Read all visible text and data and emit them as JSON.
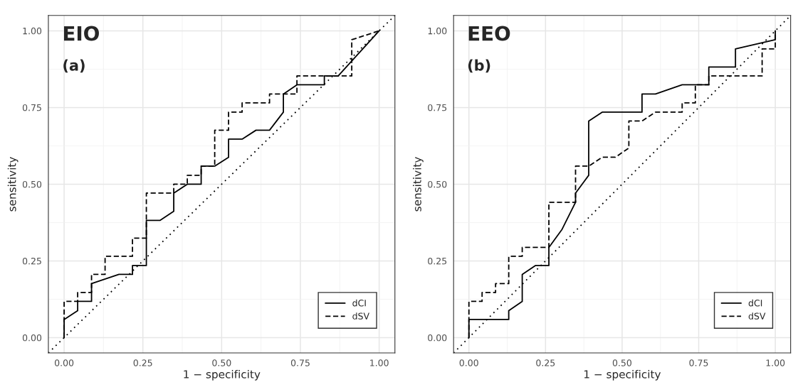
{
  "chart_data": [
    {
      "type": "line",
      "title": "EIO",
      "subtitle": "(a)",
      "xlabel": "1 − specificity",
      "ylabel": "sensitivity",
      "xlim": [
        -0.05,
        1.05
      ],
      "ylim": [
        -0.05,
        1.05
      ],
      "xticks": [
        {
          "value": 0,
          "label": "0.00"
        },
        {
          "value": 0.25,
          "label": "0.25"
        },
        {
          "value": 0.5,
          "label": "0.50"
        },
        {
          "value": 0.75,
          "label": "0.75"
        },
        {
          "value": 1,
          "label": "1.00"
        }
      ],
      "yticks": [
        {
          "value": 0,
          "label": "0.00"
        },
        {
          "value": 0.25,
          "label": "0.25"
        },
        {
          "value": 0.5,
          "label": "0.50"
        },
        {
          "value": 0.75,
          "label": "0.75"
        },
        {
          "value": 1,
          "label": "1.00"
        }
      ],
      "grid": true,
      "legend": "bottom right",
      "series": [
        {
          "name": "dCI",
          "color": "#000000",
          "line_style": "solid",
          "x": [
            0,
            0,
            0.043,
            0.043,
            0.087,
            0.087,
            0.174,
            0.217,
            0.217,
            0.261,
            0.261,
            0.304,
            0.348,
            0.348,
            0.391,
            0.435,
            0.435,
            0.478,
            0.522,
            0.522,
            0.565,
            0.609,
            0.652,
            0.696,
            0.696,
            0.739,
            0.826,
            0.826,
            0.87,
            1.0
          ],
          "values": [
            0,
            0.059,
            0.088,
            0.118,
            0.118,
            0.176,
            0.206,
            0.206,
            0.235,
            0.235,
            0.382,
            0.382,
            0.412,
            0.471,
            0.5,
            0.5,
            0.559,
            0.559,
            0.588,
            0.647,
            0.647,
            0.676,
            0.676,
            0.735,
            0.794,
            0.824,
            0.824,
            0.853,
            0.853,
            1.0
          ]
        },
        {
          "name": "dSV",
          "color": "#000000",
          "line_style": "dashed",
          "x": [
            0,
            0,
            0.043,
            0.043,
            0.087,
            0.087,
            0.13,
            0.13,
            0.217,
            0.217,
            0.261,
            0.261,
            0.348,
            0.348,
            0.391,
            0.391,
            0.435,
            0.435,
            0.478,
            0.478,
            0.522,
            0.522,
            0.565,
            0.565,
            0.652,
            0.652,
            0.739,
            0.739,
            0.913,
            0.913,
            1.0
          ],
          "values": [
            0,
            0.118,
            0.118,
            0.147,
            0.147,
            0.206,
            0.206,
            0.265,
            0.265,
            0.324,
            0.324,
            0.471,
            0.471,
            0.5,
            0.5,
            0.529,
            0.529,
            0.559,
            0.559,
            0.676,
            0.676,
            0.735,
            0.735,
            0.765,
            0.765,
            0.794,
            0.794,
            0.853,
            0.853,
            0.971,
            1.0
          ]
        },
        {
          "color": "#000000",
          "line_style": "dotted",
          "x": [
            -0.05,
            1.05
          ],
          "values": [
            -0.05,
            1.05
          ]
        }
      ]
    },
    {
      "type": "line",
      "title": "EEO",
      "subtitle": "(b)",
      "xlabel": "1 − specificity",
      "ylabel": "sensitivity",
      "xlim": [
        -0.05,
        1.05
      ],
      "ylim": [
        -0.05,
        1.05
      ],
      "xticks": [
        {
          "value": 0,
          "label": "0.00"
        },
        {
          "value": 0.25,
          "label": "0.25"
        },
        {
          "value": 0.5,
          "label": "0.50"
        },
        {
          "value": 0.75,
          "label": "0.75"
        },
        {
          "value": 1,
          "label": "1.00"
        }
      ],
      "yticks": [
        {
          "value": 0,
          "label": "0.00"
        },
        {
          "value": 0.25,
          "label": "0.25"
        },
        {
          "value": 0.5,
          "label": "0.50"
        },
        {
          "value": 0.75,
          "label": "0.75"
        },
        {
          "value": 1,
          "label": "1.00"
        }
      ],
      "grid": true,
      "legend": "bottom right",
      "series": [
        {
          "name": "dCI",
          "color": "#000000",
          "line_style": "solid",
          "x": [
            0,
            0,
            0.13,
            0.13,
            0.174,
            0.174,
            0.217,
            0.261,
            0.261,
            0.304,
            0.348,
            0.348,
            0.391,
            0.391,
            0.435,
            0.565,
            0.565,
            0.609,
            0.696,
            0.783,
            0.783,
            0.87,
            0.87,
            1.0,
            1.0
          ],
          "values": [
            0,
            0.059,
            0.059,
            0.088,
            0.118,
            0.206,
            0.235,
            0.235,
            0.294,
            0.353,
            0.441,
            0.471,
            0.529,
            0.706,
            0.735,
            0.735,
            0.794,
            0.794,
            0.824,
            0.824,
            0.882,
            0.882,
            0.941,
            0.971,
            1.0
          ]
        },
        {
          "name": "dSV",
          "color": "#000000",
          "line_style": "dashed",
          "x": [
            0,
            0,
            0.043,
            0.043,
            0.087,
            0.087,
            0.13,
            0.13,
            0.174,
            0.174,
            0.261,
            0.261,
            0.348,
            0.348,
            0.391,
            0.435,
            0.478,
            0.522,
            0.522,
            0.565,
            0.609,
            0.696,
            0.696,
            0.739,
            0.739,
            0.783,
            0.783,
            0.957,
            0.957,
            1.0,
            1.0
          ],
          "values": [
            0,
            0.118,
            0.118,
            0.147,
            0.147,
            0.176,
            0.176,
            0.265,
            0.265,
            0.294,
            0.294,
            0.441,
            0.441,
            0.559,
            0.559,
            0.588,
            0.588,
            0.618,
            0.706,
            0.706,
            0.735,
            0.735,
            0.765,
            0.765,
            0.824,
            0.824,
            0.853,
            0.853,
            0.941,
            0.941,
            1.0
          ]
        },
        {
          "color": "#000000",
          "line_style": "dotted",
          "x": [
            -0.05,
            1.05
          ],
          "values": [
            -0.05,
            1.05
          ]
        }
      ]
    }
  ]
}
